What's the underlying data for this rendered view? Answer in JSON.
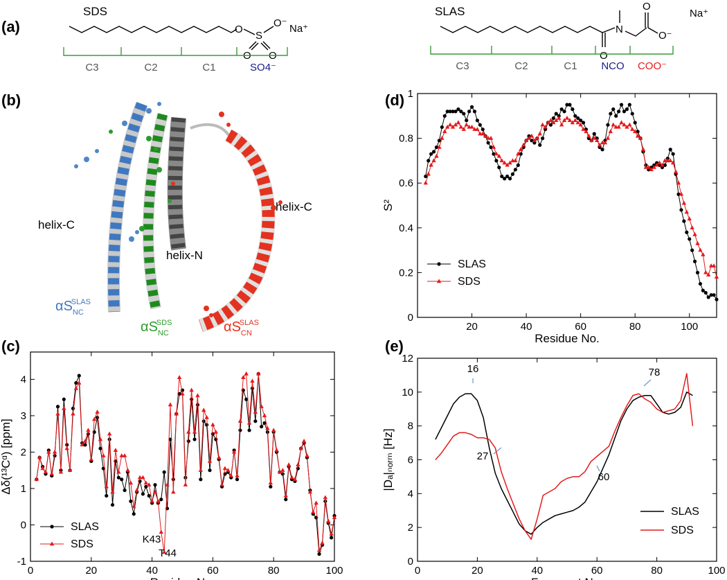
{
  "panel_labels": [
    "(a)",
    "(b)",
    "(c)",
    "(d)",
    "(e)"
  ],
  "structures": [
    {
      "name": "SDS",
      "atoms": [
        "O",
        "S",
        "O⁻",
        "O",
        "O"
      ],
      "counterion": "Na⁺",
      "groups": [
        "C3",
        "C2",
        "C1",
        "SO4⁻"
      ]
    },
    {
      "name": "SLAS",
      "atoms": [
        "N",
        "O",
        "O",
        "O⁻"
      ],
      "counterion": "Na⁺",
      "groups": [
        "C3",
        "C2",
        "C1",
        "NCO",
        "COO⁻"
      ]
    }
  ],
  "helix_labels": [
    "helix-C",
    "helix-N",
    "helix-C"
  ],
  "variants": [
    {
      "base": "αS",
      "sub": "NC",
      "sup": "SLAS"
    },
    {
      "base": "αS",
      "sub": "NC",
      "sup": "SDS"
    },
    {
      "base": "αS",
      "sub": "CN",
      "sup": "SLAS"
    }
  ],
  "chart_data": [
    {
      "type": "line",
      "x_label": "Residue No.",
      "y_label": "Δδ(¹³Cᵅ)  [ppm]",
      "x": [
        2,
        3,
        4,
        5,
        6,
        7,
        8,
        9,
        10,
        11,
        12,
        13,
        14,
        15,
        16,
        17,
        18,
        19,
        20,
        21,
        22,
        23,
        24,
        25,
        26,
        27,
        28,
        29,
        30,
        31,
        32,
        33,
        34,
        35,
        36,
        37,
        38,
        39,
        40,
        41,
        42,
        43,
        44,
        45,
        46,
        47,
        48,
        49,
        50,
        51,
        52,
        53,
        54,
        55,
        56,
        57,
        58,
        59,
        60,
        61,
        62,
        63,
        64,
        65,
        66,
        67,
        68,
        69,
        70,
        71,
        72,
        73,
        74,
        75,
        76,
        77,
        78,
        79,
        80,
        81,
        82,
        83,
        84,
        85,
        86,
        87,
        88,
        89,
        90,
        91,
        92,
        93,
        94,
        95,
        96,
        97,
        98,
        99,
        100
      ],
      "series": [
        {
          "name": "SLAS",
          "color": "#000000",
          "marker": "circle",
          "values": [
            1.25,
            1.85,
            1.6,
            1.4,
            2.05,
            1.35,
            1.9,
            3.25,
            1.5,
            3.45,
            2.2,
            1.5,
            3.2,
            3.9,
            4.1,
            2.25,
            2.2,
            2.5,
            1.75,
            2.55,
            2.95,
            2.1,
            1.55,
            0.8,
            2.35,
            0.55,
            1.75,
            1.3,
            1.25,
            0.95,
            1.45,
            0.65,
            0.3,
            0.9,
            1.2,
            0.85,
            1.05,
            0.8,
            0.6,
            1.1,
            0.6,
            0.7,
            1.45,
            0.45,
            2.35,
            1.25,
            3.05,
            3.6,
            3.7,
            1.3,
            2.3,
            3.45,
            2.35,
            3.3,
            1.25,
            2.85,
            2.75,
            1.5,
            2.5,
            2.35,
            1.8,
            1.05,
            1.4,
            1.45,
            1.3,
            2.05,
            1.25,
            2.6,
            3.7,
            3.45,
            2.6,
            3.75,
            2.85,
            4.15,
            2.7,
            2.8,
            2.55,
            1.05,
            2.55,
            2.0,
            1.45,
            1.4,
            0.7,
            1.6,
            1.25,
            1.2,
            1.55,
            2.1,
            2.25,
            1.85,
            0.95,
            0.3,
            0.2,
            -0.8,
            -0.55,
            0.65,
            0.05,
            -0.35,
            0.25
          ]
        },
        {
          "name": "SDS",
          "color": "#e41a1c",
          "marker": "triangle",
          "values": [
            1.25,
            1.85,
            1.55,
            1.45,
            2.0,
            1.4,
            2.0,
            3.05,
            1.45,
            3.2,
            2.1,
            1.5,
            3.05,
            3.75,
            3.9,
            2.2,
            2.3,
            2.6,
            1.8,
            2.9,
            3.1,
            2.35,
            1.9,
            1.05,
            2.5,
            0.9,
            2.05,
            1.45,
            1.9,
            1.9,
            1.5,
            1.15,
            0.5,
            0.95,
            1.3,
            1.3,
            1.15,
            1.1,
            0.65,
            0.9,
            0.65,
            -0.2,
            -0.75,
            1.1,
            3.3,
            0.9,
            3.05,
            4.05,
            3.6,
            1.1,
            2.55,
            3.7,
            2.55,
            3.55,
            1.5,
            3.15,
            2.95,
            1.75,
            2.75,
            2.55,
            1.85,
            1.1,
            1.55,
            1.5,
            1.35,
            2.0,
            1.35,
            2.85,
            4.05,
            4.15,
            2.8,
            3.95,
            3.1,
            4.15,
            3.25,
            3.0,
            2.65,
            1.15,
            2.6,
            2.05,
            1.45,
            1.5,
            0.8,
            1.65,
            1.3,
            1.25,
            1.65,
            2.1,
            2.3,
            1.9,
            0.9,
            0.35,
            0.6,
            -0.7,
            -0.5,
            0.75,
            0.1,
            -0.25,
            0.2
          ]
        }
      ],
      "xlim": [
        0,
        100
      ],
      "xticks": [
        0,
        20,
        40,
        60,
        80,
        100
      ],
      "ylim": [
        -1,
        4.75
      ],
      "yticks": [
        -1,
        0,
        1,
        2,
        3,
        4
      ],
      "legend": "lower left",
      "annotations": [
        "K43",
        "T44"
      ]
    },
    {
      "type": "line",
      "x_label": "Residue No.",
      "y_label": "S²",
      "x": [
        3,
        4,
        5,
        6,
        7,
        8,
        9,
        10,
        11,
        12,
        13,
        14,
        15,
        16,
        17,
        18,
        19,
        20,
        21,
        22,
        23,
        24,
        25,
        26,
        27,
        28,
        29,
        30,
        31,
        32,
        33,
        34,
        35,
        36,
        37,
        38,
        39,
        40,
        41,
        42,
        43,
        44,
        45,
        46,
        47,
        48,
        49,
        50,
        51,
        52,
        53,
        54,
        55,
        56,
        57,
        58,
        59,
        60,
        61,
        62,
        63,
        64,
        65,
        66,
        67,
        68,
        69,
        70,
        71,
        72,
        73,
        74,
        75,
        76,
        77,
        78,
        79,
        80,
        81,
        82,
        83,
        84,
        85,
        86,
        87,
        88,
        89,
        90,
        91,
        92,
        93,
        94,
        95,
        96,
        97,
        98,
        99,
        100,
        101,
        102,
        103,
        104,
        105,
        106,
        107,
        108,
        109,
        110
      ],
      "series": [
        {
          "name": "SLAS",
          "color": "#000000",
          "marker": "circle",
          "values": [
            0.63,
            0.7,
            0.73,
            0.74,
            0.76,
            0.79,
            0.85,
            0.9,
            0.92,
            0.92,
            0.92,
            0.92,
            0.93,
            0.92,
            0.91,
            0.88,
            0.92,
            0.94,
            0.92,
            0.88,
            0.86,
            0.84,
            0.81,
            0.78,
            0.76,
            0.73,
            0.7,
            0.67,
            0.63,
            0.62,
            0.63,
            0.62,
            0.64,
            0.66,
            0.68,
            0.73,
            0.76,
            0.79,
            0.81,
            0.79,
            0.78,
            0.8,
            0.77,
            0.8,
            0.84,
            0.87,
            0.86,
            0.89,
            0.91,
            0.9,
            0.93,
            0.92,
            0.95,
            0.95,
            0.93,
            0.9,
            0.89,
            0.88,
            0.87,
            0.84,
            0.8,
            0.79,
            0.82,
            0.8,
            0.76,
            0.75,
            0.79,
            0.86,
            0.91,
            0.93,
            0.9,
            0.92,
            0.95,
            0.92,
            0.93,
            0.95,
            0.91,
            0.87,
            0.83,
            0.8,
            0.74,
            0.68,
            0.66,
            0.67,
            0.68,
            0.69,
            0.68,
            0.67,
            0.68,
            0.71,
            0.75,
            0.73,
            0.64,
            0.55,
            0.48,
            0.43,
            0.38,
            0.35,
            0.3,
            0.25,
            0.2,
            0.15,
            0.12,
            0.11,
            0.09,
            0.1,
            0.1,
            0.08
          ]
        },
        {
          "name": "SDS",
          "color": "#e41a1c",
          "marker": "triangle",
          "values": [
            0.6,
            0.64,
            0.68,
            0.7,
            0.72,
            0.76,
            0.8,
            0.83,
            0.85,
            0.86,
            0.85,
            0.86,
            0.87,
            0.85,
            0.84,
            0.86,
            0.85,
            0.85,
            0.84,
            0.84,
            0.82,
            0.82,
            0.81,
            0.8,
            0.8,
            0.76,
            0.73,
            0.72,
            0.7,
            0.69,
            0.68,
            0.69,
            0.7,
            0.7,
            0.73,
            0.75,
            0.77,
            0.79,
            0.8,
            0.81,
            0.79,
            0.8,
            0.82,
            0.86,
            0.85,
            0.87,
            0.88,
            0.87,
            0.88,
            0.89,
            0.86,
            0.88,
            0.89,
            0.88,
            0.87,
            0.88,
            0.87,
            0.86,
            0.84,
            0.83,
            0.81,
            0.79,
            0.8,
            0.79,
            0.77,
            0.78,
            0.78,
            0.8,
            0.83,
            0.86,
            0.85,
            0.85,
            0.87,
            0.86,
            0.85,
            0.86,
            0.84,
            0.83,
            0.81,
            0.8,
            0.75,
            0.67,
            0.67,
            0.66,
            0.67,
            0.68,
            0.69,
            0.68,
            0.7,
            0.7,
            0.7,
            0.69,
            0.65,
            0.6,
            0.55,
            0.51,
            0.47,
            0.44,
            0.4,
            0.37,
            0.33,
            0.3,
            0.28,
            0.2,
            0.19,
            0.23,
            0.23,
            0.18
          ]
        }
      ],
      "xlim": [
        0,
        110
      ],
      "xticks": [
        20,
        40,
        60,
        80,
        100
      ],
      "ylim": [
        0,
        1
      ],
      "yticks": [
        0,
        0.2,
        0.4,
        0.6,
        0.8,
        1
      ],
      "legend": "lower left",
      "annotations": []
    },
    {
      "type": "line",
      "x_label": "Fragment No.",
      "y_label": "|Dₐ|ₙₒᵣₘ  [Hz]",
      "x": [
        6,
        8,
        10,
        12,
        14,
        16,
        18,
        20,
        22,
        24,
        26,
        28,
        30,
        32,
        34,
        36,
        38,
        40,
        42,
        44,
        46,
        48,
        50,
        52,
        54,
        56,
        58,
        60,
        62,
        64,
        66,
        68,
        70,
        72,
        74,
        76,
        78,
        80,
        82,
        84,
        86,
        88,
        90,
        92
      ],
      "series": [
        {
          "name": "SLAS",
          "color": "#000000",
          "marker": "none",
          "values": [
            7.2,
            7.9,
            8.6,
            9.3,
            9.7,
            9.9,
            9.9,
            9.5,
            8.5,
            6.7,
            5.2,
            4.3,
            3.6,
            2.9,
            2.2,
            1.8,
            1.6,
            2.0,
            2.3,
            2.5,
            2.7,
            2.8,
            2.9,
            3.0,
            3.2,
            3.5,
            4.1,
            4.7,
            5.5,
            6.3,
            7.3,
            8.3,
            9.0,
            9.5,
            9.7,
            9.8,
            9.8,
            9.3,
            8.8,
            8.7,
            8.8,
            9.1,
            10.0,
            9.8
          ]
        },
        {
          "name": "SDS",
          "color": "#e41a1c",
          "marker": "none",
          "values": [
            6.0,
            6.4,
            6.9,
            7.4,
            7.6,
            7.6,
            7.5,
            7.3,
            7.3,
            7.2,
            6.7,
            5.3,
            4.3,
            3.4,
            2.5,
            1.8,
            1.3,
            2.5,
            3.9,
            4.1,
            4.3,
            4.7,
            4.9,
            5.0,
            5.0,
            5.3,
            5.9,
            6.2,
            6.5,
            6.8,
            7.7,
            8.5,
            9.2,
            9.8,
            9.9,
            9.6,
            9.4,
            9.0,
            8.8,
            8.9,
            9.0,
            9.5,
            11.1,
            8.0
          ]
        }
      ],
      "xlim": [
        0,
        100
      ],
      "xticks": [
        0,
        20,
        40,
        60,
        80,
        100
      ],
      "ylim": [
        0,
        12
      ],
      "yticks": [
        0,
        2,
        4,
        6,
        8,
        10,
        12
      ],
      "legend": "lower right",
      "annotations": [
        "16",
        "27",
        "60",
        "78"
      ]
    }
  ]
}
